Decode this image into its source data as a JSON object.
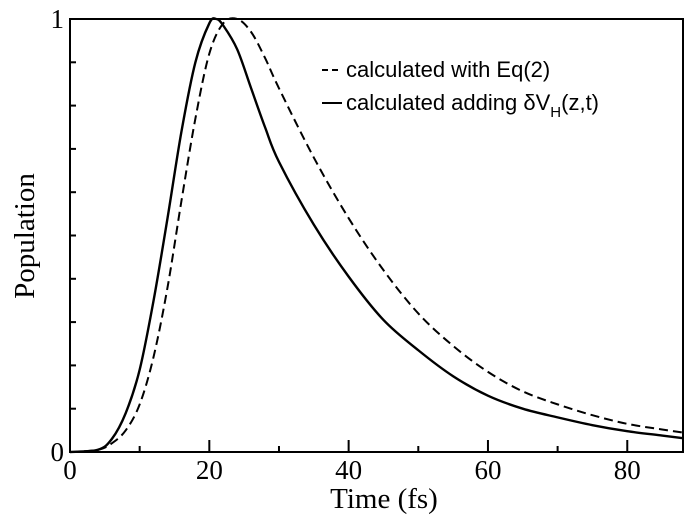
{
  "chart_data": {
    "type": "line",
    "xlabel": "Time (fs)",
    "ylabel": "Population",
    "xlim": [
      0,
      88
    ],
    "ylim": [
      0,
      1
    ],
    "x_ticks": [
      0,
      20,
      40,
      60,
      80
    ],
    "y_ticks": [
      0,
      1
    ],
    "legend_position": "top-right",
    "grid": false,
    "series": [
      {
        "name": "calculated with Eq(2)",
        "style": "dashed",
        "color": "#000000",
        "x": [
          0,
          4,
          6,
          8,
          10,
          12,
          14,
          16,
          18,
          20,
          22,
          24,
          26,
          28,
          30,
          35,
          40,
          45,
          50,
          55,
          60,
          65,
          70,
          75,
          80,
          85,
          88
        ],
        "y": [
          0,
          0.005,
          0.02,
          0.05,
          0.11,
          0.22,
          0.38,
          0.58,
          0.77,
          0.92,
          0.99,
          1.0,
          0.97,
          0.91,
          0.84,
          0.68,
          0.54,
          0.42,
          0.32,
          0.245,
          0.185,
          0.14,
          0.11,
          0.085,
          0.065,
          0.052,
          0.045
        ]
      },
      {
        "name_parts": [
          "calculated adding ",
          "δV",
          "H",
          "(z,t)"
        ],
        "style": "solid",
        "color": "#000000",
        "x": [
          0,
          4,
          6,
          8,
          10,
          12,
          14,
          16,
          18,
          20,
          21,
          22,
          24,
          26,
          28,
          30,
          35,
          40,
          45,
          50,
          55,
          60,
          65,
          70,
          75,
          80,
          85,
          88
        ],
        "y": [
          0,
          0.005,
          0.03,
          0.09,
          0.19,
          0.35,
          0.54,
          0.74,
          0.9,
          0.99,
          1.0,
          0.985,
          0.93,
          0.84,
          0.75,
          0.67,
          0.525,
          0.405,
          0.305,
          0.235,
          0.175,
          0.13,
          0.1,
          0.08,
          0.062,
          0.048,
          0.038,
          0.032
        ]
      }
    ]
  }
}
